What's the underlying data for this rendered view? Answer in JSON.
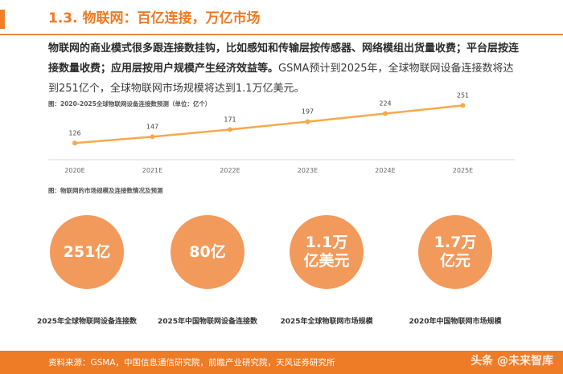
{
  "header": {
    "title": "1.3. 物联网：百亿连接，万亿市场"
  },
  "body": {
    "bold_text": "物联网的商业模式很多跟连接数挂钩，比如感知和传输层按传感器、网络模组出货量收费；平台层按连接数量收费；应用层按用户规模产生经济效益等。",
    "light_text": "GSMA预计到2025年，全球物联网设备连接数将达到251亿个，全球物联网市场规模将达到1.1万亿美元。"
  },
  "chart_caption": "图：2020-2025全球物联网设备连接数预测（单位：亿个）",
  "chart_data": {
    "type": "line",
    "categories": [
      "2020E",
      "2021E",
      "2022E",
      "2023E",
      "2024E",
      "2025E"
    ],
    "values": [
      126,
      147,
      171,
      197,
      224,
      251
    ],
    "title": "2020-2025全球物联网设备连接数预测",
    "ylabel": "亿个",
    "grid": false,
    "color": "#f7a94a"
  },
  "stats_caption": "图：物联网的市场规模及连接数情况及预测",
  "stats": [
    {
      "value": "251亿",
      "label": "2025年全球物联网设备连接数"
    },
    {
      "value": "80亿",
      "label": "2025年中国物联网设备连接数"
    },
    {
      "value": "1.1万 亿美元",
      "label": "2025年全球物联网市场规模"
    },
    {
      "value": "1.7万 亿元",
      "label": "2020年中国物联网市场规模"
    }
  ],
  "footer": {
    "source": "资料来源：GSMA，中国信息通信研究院，前瞻产业研究院，天风证券研究所",
    "watermark": "头条 @未来智库"
  },
  "colors": {
    "accent": "#ef7a22",
    "circle": "#f29a5b",
    "footer": "#ee7b25"
  }
}
